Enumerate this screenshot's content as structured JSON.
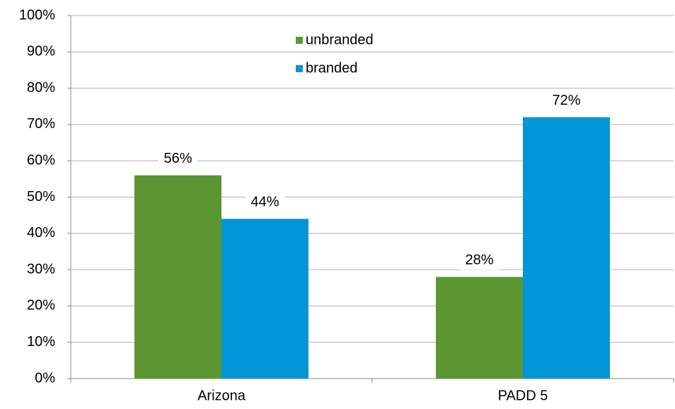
{
  "chart_data": {
    "type": "bar",
    "categories": [
      "Arizona",
      "PADD 5"
    ],
    "series": [
      {
        "name": "unbranded",
        "color": "#5c9632",
        "values": [
          56,
          28
        ],
        "value_labels": [
          "56%",
          "28%"
        ]
      },
      {
        "name": "branded",
        "color": "#0096d7",
        "values": [
          44,
          72
        ],
        "value_labels": [
          "44%",
          "72%"
        ]
      }
    ],
    "ylim": [
      0,
      100
    ],
    "yticks": [
      {
        "value": 0,
        "label": "0%"
      },
      {
        "value": 10,
        "label": "10%"
      },
      {
        "value": 20,
        "label": "20%"
      },
      {
        "value": 30,
        "label": "30%"
      },
      {
        "value": 40,
        "label": "40%"
      },
      {
        "value": 50,
        "label": "50%"
      },
      {
        "value": 60,
        "label": "60%"
      },
      {
        "value": 70,
        "label": "70%"
      },
      {
        "value": 80,
        "label": "80%"
      },
      {
        "value": 90,
        "label": "90%"
      },
      {
        "value": 100,
        "label": "100%"
      }
    ],
    "grid": true
  }
}
